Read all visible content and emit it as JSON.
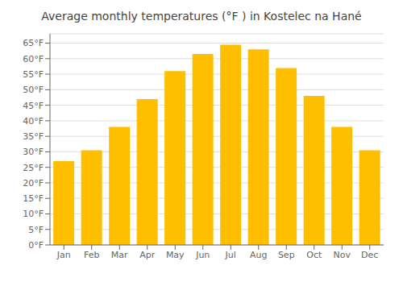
{
  "chart_data": {
    "type": "bar",
    "title": "Average monthly temperatures (°F ) in Kostelec na Hané",
    "categories": [
      "Jan",
      "Feb",
      "Mar",
      "Apr",
      "May",
      "Jun",
      "Jul",
      "Aug",
      "Sep",
      "Oct",
      "Nov",
      "Dec"
    ],
    "values": [
      27,
      30.5,
      38,
      47,
      56,
      61.5,
      64.5,
      63,
      57,
      48,
      38,
      30.5
    ],
    "color": "#FFBF00",
    "ylim": [
      0,
      68
    ],
    "yticks": [
      {
        "value": 0,
        "label": "0°F"
      },
      {
        "value": 5,
        "label": "5°F"
      },
      {
        "value": 10,
        "label": "10°F"
      },
      {
        "value": 15,
        "label": "15°F"
      },
      {
        "value": 20,
        "label": "20°F"
      },
      {
        "value": 25,
        "label": "25°F"
      },
      {
        "value": 30,
        "label": "30°F"
      },
      {
        "value": 35,
        "label": "35°F"
      },
      {
        "value": 40,
        "label": "40°F"
      },
      {
        "value": 45,
        "label": "45°F"
      },
      {
        "value": 50,
        "label": "50°F"
      },
      {
        "value": 55,
        "label": "55°F"
      },
      {
        "value": 60,
        "label": "60°F"
      },
      {
        "value": 65,
        "label": "65°F"
      }
    ],
    "grid": true
  }
}
